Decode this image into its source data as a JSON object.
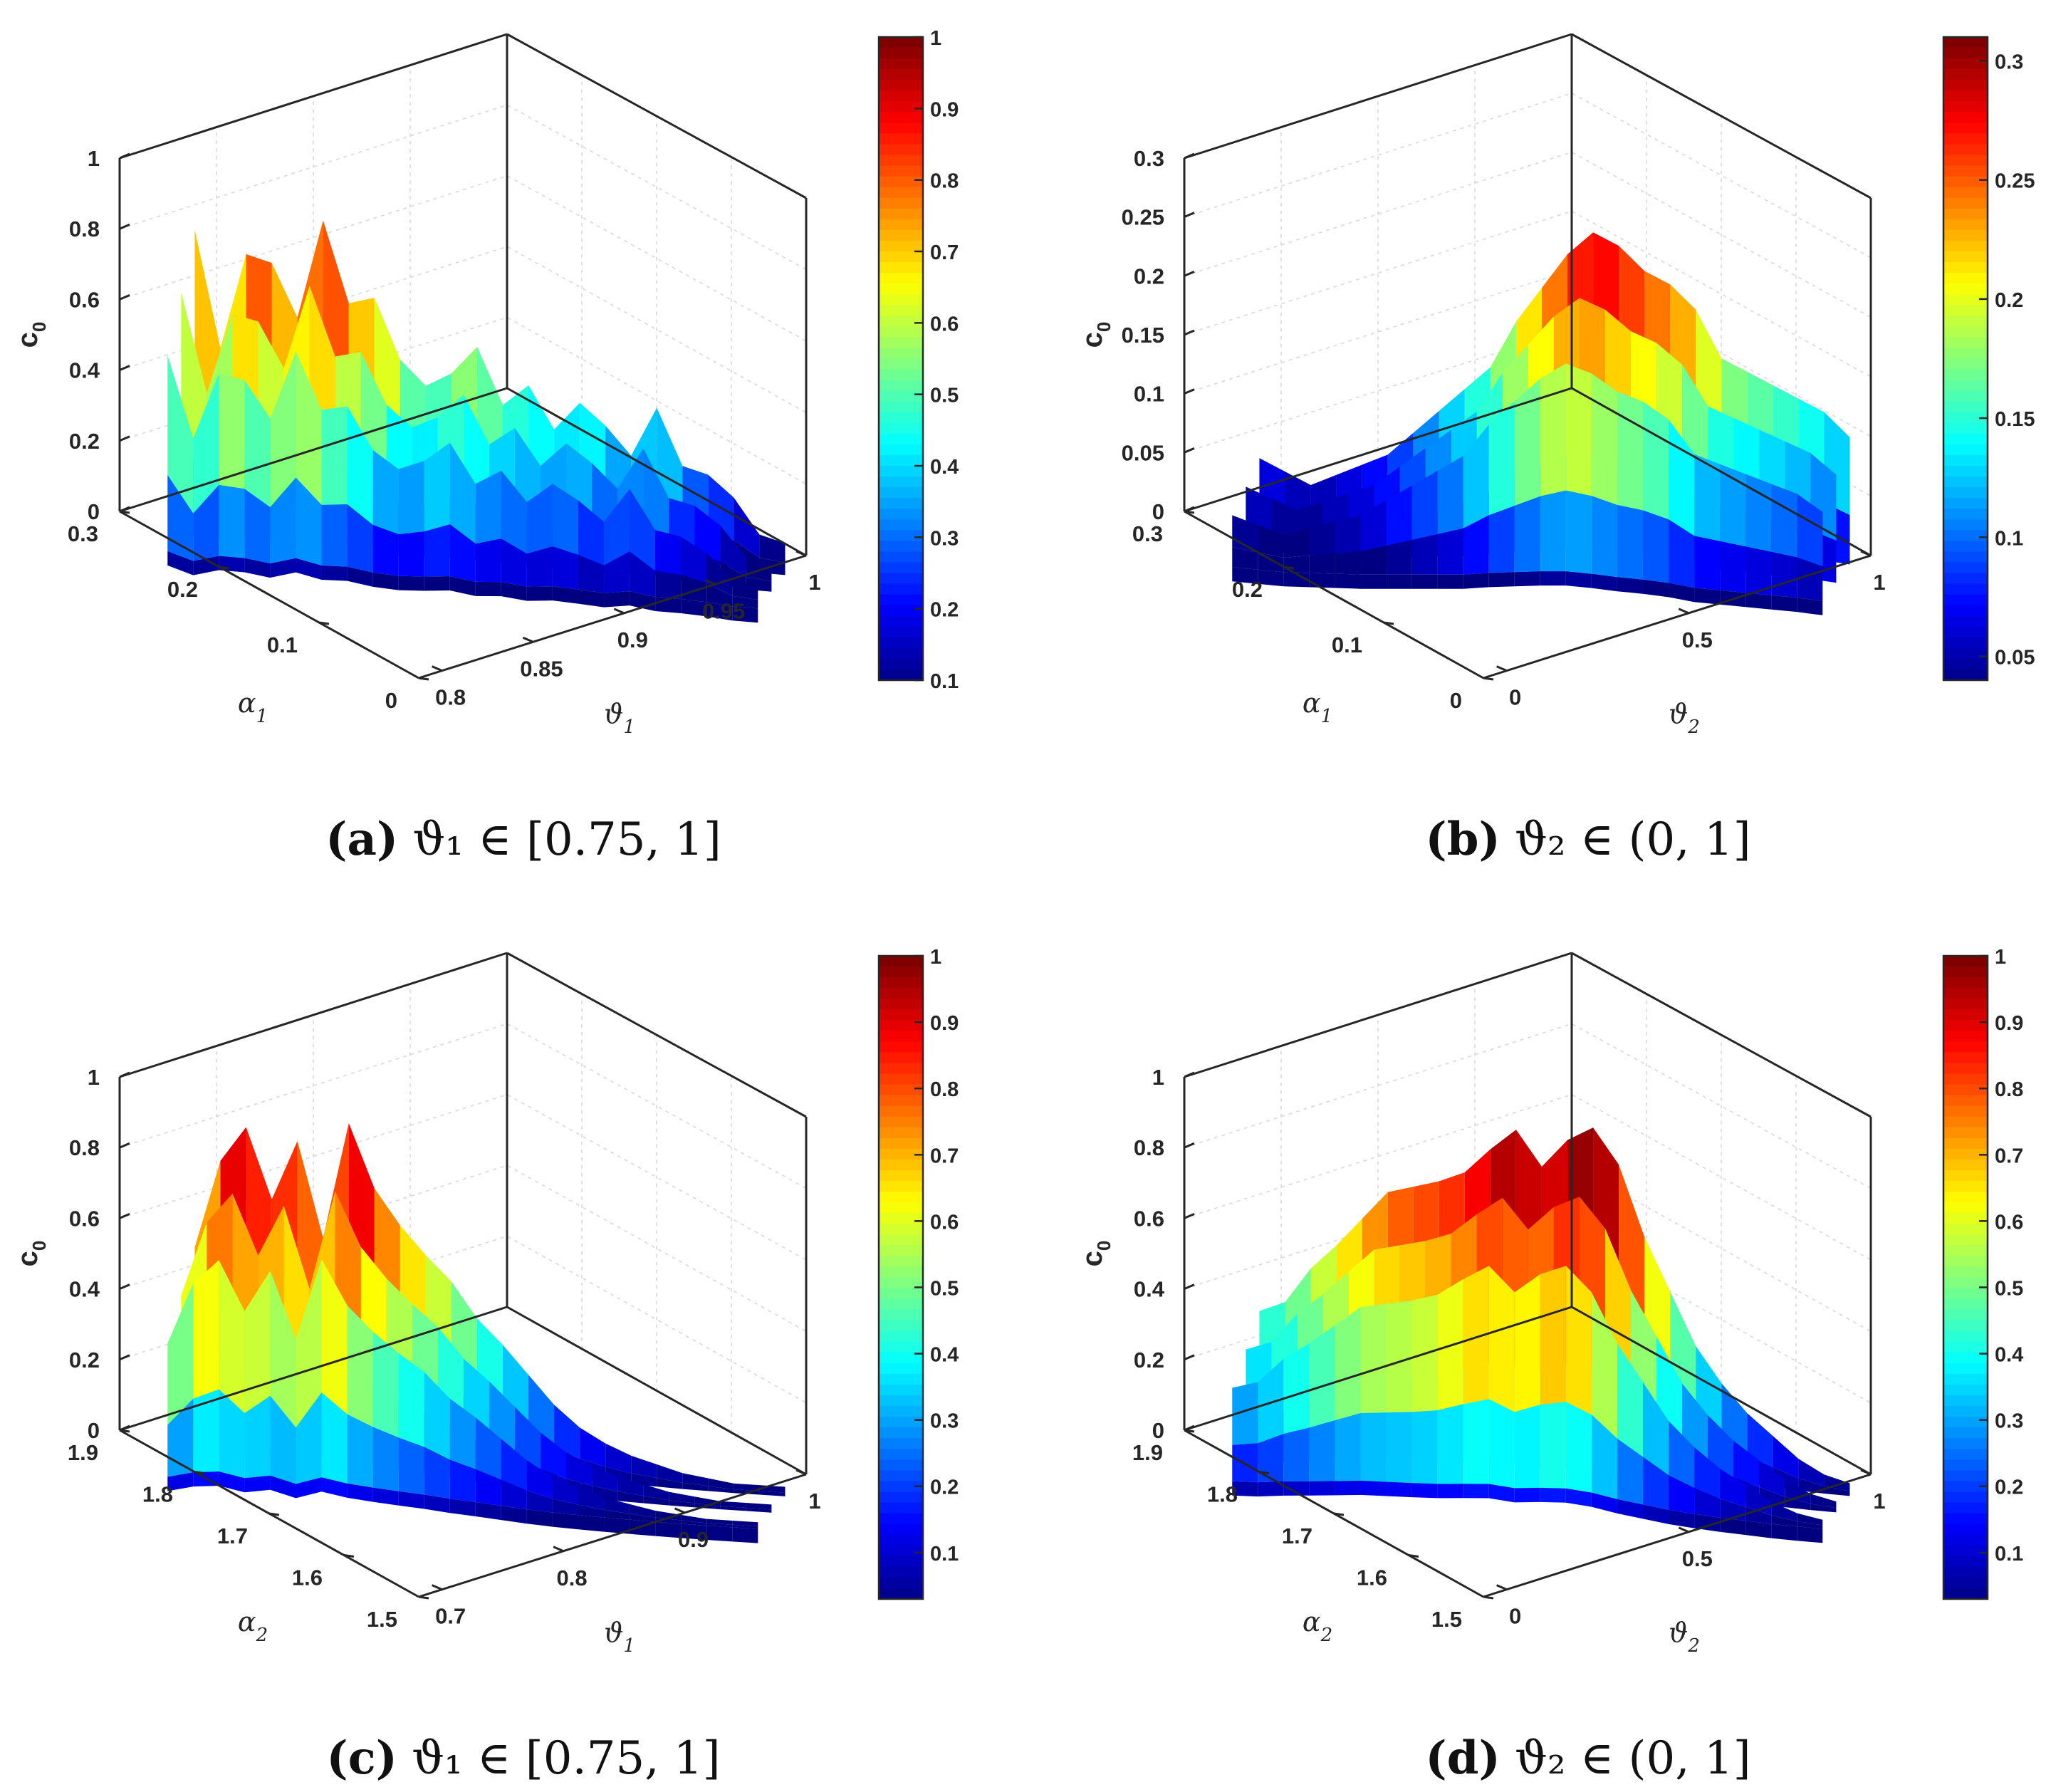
{
  "colors": {
    "axis": "#262626",
    "grid": "#d9d9d9",
    "colormap": "jet"
  },
  "chart_data": [
    {
      "id": "a",
      "type": "surface",
      "caption_letter": "(a)",
      "caption_text": "ϑ₁ ∈ [0.75, 1]",
      "zlabel": "c0",
      "xlabel": "α1",
      "ylabel": "ϑ1",
      "xlim": [
        0,
        0.3
      ],
      "ylim": [
        0.75,
        1
      ],
      "zlim": [
        0,
        1
      ],
      "x_ticks": [
        "0.3",
        "0.2",
        "0.1",
        "0"
      ],
      "y_ticks": [
        "0.8",
        "0.85",
        "0.9",
        "0.95",
        "1"
      ],
      "z_ticks": [
        "0",
        "0.2",
        "0.4",
        "0.6",
        "0.8",
        "1"
      ],
      "colorbar": {
        "min": 0.1,
        "max": 1,
        "ticks": [
          "0.1",
          "0.2",
          "0.3",
          "0.4",
          "0.5",
          "0.6",
          "0.7",
          "0.8",
          "0.9",
          "1"
        ]
      },
      "surface_profile": [
        0.88,
        0.55,
        0.82,
        0.8,
        0.65,
        0.93,
        0.7,
        0.72,
        0.55,
        0.48,
        0.52,
        0.6,
        0.44,
        0.5,
        0.38,
        0.46,
        0.4,
        0.32,
        0.46,
        0.3,
        0.28,
        0.22,
        0.12,
        0.1
      ]
    },
    {
      "id": "b",
      "type": "surface",
      "caption_letter": "(b)",
      "caption_text": "ϑ₂ ∈ (0, 1]",
      "zlabel": "c0",
      "xlabel": "α1",
      "ylabel": "ϑ2",
      "xlim": [
        0,
        0.3
      ],
      "ylim": [
        0,
        1
      ],
      "zlim": [
        0,
        0.3
      ],
      "x_ticks": [
        "0.3",
        "0.2",
        "0.1",
        "0"
      ],
      "y_ticks": [
        "0",
        "0.5",
        "1"
      ],
      "z_ticks": [
        "0",
        "0.05",
        "0.1",
        "0.15",
        "0.2",
        "0.25",
        "0.3"
      ],
      "colorbar": {
        "min": 0.04,
        "max": 0.31,
        "ticks": [
          "0.05",
          "0.1",
          "0.15",
          "0.2",
          "0.25",
          "0.3"
        ]
      },
      "surface_profile": [
        0.07,
        0.06,
        0.05,
        0.06,
        0.07,
        0.08,
        0.1,
        0.12,
        0.14,
        0.16,
        0.2,
        0.23,
        0.26,
        0.28,
        0.27,
        0.25,
        0.24,
        0.22,
        0.18,
        0.17,
        0.16,
        0.15,
        0.14,
        0.12
      ]
    },
    {
      "id": "c",
      "type": "surface",
      "caption_letter": "(c)",
      "caption_text": "ϑ₁ ∈ [0.75, 1]",
      "zlabel": "c0",
      "xlabel": "α2",
      "ylabel": "ϑ1",
      "xlim": [
        1.5,
        1.9
      ],
      "ylim": [
        0.7,
        1
      ],
      "zlim": [
        0,
        1
      ],
      "x_ticks": [
        "1.9",
        "1.8",
        "1.7",
        "1.6",
        "1.5"
      ],
      "y_ticks": [
        "0.7",
        "0.8",
        "0.9",
        "1"
      ],
      "z_ticks": [
        "0",
        "0.2",
        "0.4",
        "0.6",
        "0.8",
        "1"
      ],
      "colorbar": {
        "min": 0.03,
        "max": 1,
        "ticks": [
          "0.1",
          "0.2",
          "0.3",
          "0.4",
          "0.5",
          "0.6",
          "0.7",
          "0.8",
          "0.9",
          "1"
        ]
      },
      "surface_profile": [
        0.6,
        0.85,
        0.95,
        0.75,
        0.92,
        0.65,
        0.98,
        0.8,
        0.7,
        0.62,
        0.55,
        0.45,
        0.38,
        0.3,
        0.22,
        0.16,
        0.12,
        0.09,
        0.07,
        0.05,
        0.04,
        0.03,
        0.03,
        0.03
      ]
    },
    {
      "id": "d",
      "type": "surface",
      "caption_letter": "(d)",
      "caption_text": "ϑ₂ ∈ (0, 1]",
      "zlabel": "c0",
      "xlabel": "α2",
      "ylabel": "ϑ2",
      "xlim": [
        1.5,
        1.9
      ],
      "ylim": [
        0,
        1
      ],
      "zlim": [
        0,
        1
      ],
      "x_ticks": [
        "1.9",
        "1.8",
        "1.7",
        "1.6",
        "1.5"
      ],
      "y_ticks": [
        "0",
        "0.5",
        "1"
      ],
      "z_ticks": [
        "0",
        "0.2",
        "0.4",
        "0.6",
        "0.8",
        "1"
      ],
      "colorbar": {
        "min": 0.03,
        "max": 1,
        "ticks": [
          "0.1",
          "0.2",
          "0.3",
          "0.4",
          "0.5",
          "0.6",
          "0.7",
          "0.8",
          "0.9",
          "1"
        ]
      },
      "surface_profile": [
        0.42,
        0.45,
        0.55,
        0.62,
        0.7,
        0.78,
        0.8,
        0.82,
        0.85,
        0.92,
        0.98,
        0.88,
        0.96,
        1.0,
        0.9,
        0.7,
        0.55,
        0.4,
        0.3,
        0.22,
        0.16,
        0.1,
        0.06,
        0.04
      ]
    }
  ]
}
